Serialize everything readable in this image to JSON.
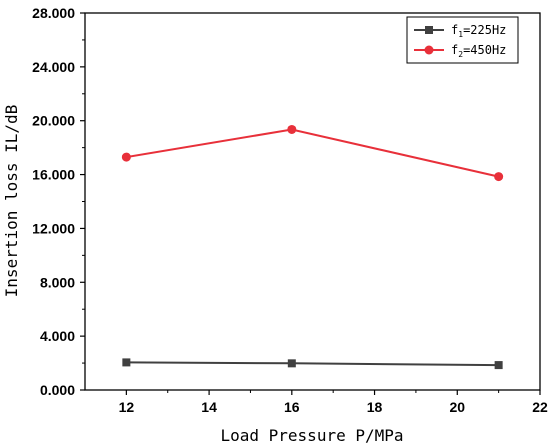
{
  "chart_data": {
    "type": "line",
    "xlabel": "Load Pressure P/MPa",
    "ylabel": "Insertion loss IL/dB",
    "xlim": [
      11,
      22
    ],
    "ylim": [
      0,
      28
    ],
    "x_ticks": [
      "12",
      "14",
      "16",
      "18",
      "20",
      "22"
    ],
    "y_ticks": [
      "0.000",
      "4.000",
      "8.000",
      "12.000",
      "16.000",
      "20.000",
      "24.000",
      "28.000"
    ],
    "grid": false,
    "legend_position": "top-right",
    "series": [
      {
        "name_main": "f",
        "name_sub": "1",
        "name_rest": "=225Hz",
        "color": "#404040",
        "marker": "square",
        "x": [
          12,
          16,
          21
        ],
        "y": [
          2.05,
          1.98,
          1.85
        ]
      },
      {
        "name_main": "f",
        "name_sub": "2",
        "name_rest": "=450Hz",
        "color": "#e8303a",
        "marker": "circle",
        "x": [
          12,
          16,
          21
        ],
        "y": [
          17.3,
          19.35,
          15.85
        ]
      }
    ]
  }
}
